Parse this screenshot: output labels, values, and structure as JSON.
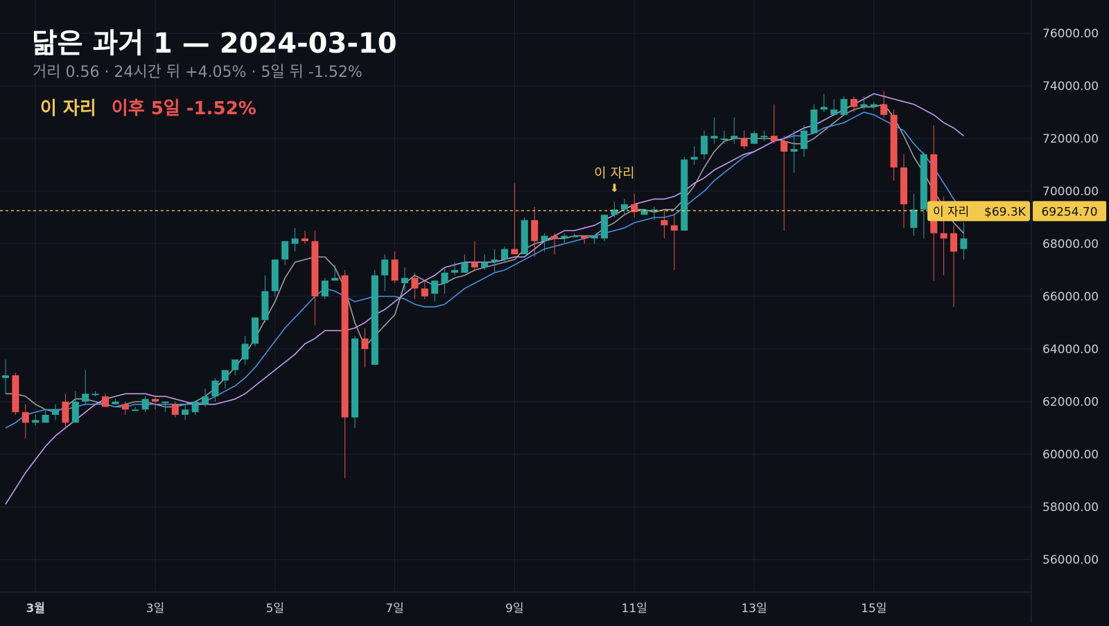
{
  "header": {
    "title": "닮은 과거 1 — 2024-03-10",
    "subtitle": "거리 0.56 · 24시간 뒤 +4.05% · 5일 뒤 -1.52%",
    "marker_label": "이 자리",
    "marker_change": "이후 5일 -1.52%"
  },
  "colors": {
    "background": "#0d1017",
    "grid": "#1d2230",
    "up": "#26a69a",
    "down": "#ef5350",
    "ma_short": "#9e9e9e",
    "ma_mid": "#4a90e2",
    "ma_long": "#c79cf0",
    "marker": "#f2c94c",
    "axis_text": "#c9ccd3"
  },
  "chart_data": {
    "type": "candlestick",
    "title": "닮은 과거 1 — 2024-03-10",
    "interval_hours": 2,
    "start": "2024-03-01 00:00",
    "ylim": [
      55000,
      77000
    ],
    "y_ticks": [
      56000,
      58000,
      60000,
      62000,
      64000,
      66000,
      68000,
      70000,
      72000,
      74000,
      76000
    ],
    "y_tick_labels": [
      "56000.00",
      "58000.00",
      "60000.00",
      "62000.00",
      "64000.00",
      "66000.00",
      "68000.00",
      "70000.00",
      "72000.00",
      "74000.00",
      "76000.00"
    ],
    "x_tick_labels": [
      "3월",
      "3일",
      "5일",
      "7일",
      "9일",
      "11일",
      "13일",
      "15일"
    ],
    "grid": true,
    "candles": [
      [
        62900,
        63600,
        62300,
        63000
      ],
      [
        63000,
        63100,
        61500,
        61600
      ],
      [
        61600,
        61900,
        60600,
        61200
      ],
      [
        61200,
        61500,
        61100,
        61300
      ],
      [
        61200,
        61700,
        61200,
        61500
      ],
      [
        61500,
        61900,
        61300,
        61700
      ],
      [
        62000,
        62300,
        61000,
        61200
      ],
      [
        61200,
        62400,
        61200,
        62000
      ],
      [
        62000,
        63200,
        61900,
        62300
      ],
      [
        62300,
        62400,
        62200,
        62300
      ],
      [
        62200,
        62300,
        61900,
        61800
      ],
      [
        61900,
        62100,
        61900,
        62000
      ],
      [
        61900,
        62000,
        61500,
        61700
      ],
      [
        61700,
        61800,
        61700,
        61700
      ],
      [
        61700,
        62200,
        61600,
        62100
      ],
      [
        62100,
        62200,
        61700,
        62000
      ],
      [
        62000,
        62000,
        61600,
        62000
      ],
      [
        61900,
        62000,
        61400,
        61500
      ],
      [
        61500,
        61900,
        61300,
        61700
      ],
      [
        61600,
        61900,
        61500,
        62000
      ],
      [
        61900,
        62500,
        61800,
        62200
      ],
      [
        62200,
        62900,
        62000,
        62800
      ],
      [
        62800,
        63200,
        62500,
        63200
      ],
      [
        63200,
        63600,
        63000,
        63600
      ],
      [
        63600,
        64500,
        63400,
        64200
      ],
      [
        64200,
        65200,
        64100,
        65200
      ],
      [
        65100,
        66800,
        65000,
        66200
      ],
      [
        66200,
        67400,
        66000,
        67400
      ],
      [
        67400,
        68100,
        67200,
        68100
      ],
      [
        68000,
        68600,
        67700,
        68200
      ],
      [
        68200,
        68500,
        68000,
        68100
      ],
      [
        68100,
        68500,
        64900,
        66000
      ],
      [
        66000,
        66700,
        65900,
        66600
      ],
      [
        66600,
        67200,
        66600,
        66700
      ],
      [
        66800,
        67000,
        59100,
        61400
      ],
      [
        61400,
        64500,
        61000,
        64400
      ],
      [
        64400,
        64800,
        63300,
        64000
      ],
      [
        63400,
        67000,
        63400,
        66800
      ],
      [
        66800,
        67600,
        66200,
        67400
      ],
      [
        67400,
        67700,
        66500,
        66600
      ],
      [
        66500,
        67100,
        66200,
        66700
      ],
      [
        66700,
        66900,
        65900,
        66300
      ],
      [
        66300,
        66600,
        65900,
        66000
      ],
      [
        66100,
        66600,
        65800,
        66600
      ],
      [
        66500,
        67100,
        66100,
        66900
      ],
      [
        66900,
        67300,
        66800,
        67000
      ],
      [
        66900,
        67600,
        66900,
        67300
      ],
      [
        67300,
        68100,
        67000,
        67100
      ],
      [
        67100,
        67600,
        67000,
        67300
      ],
      [
        67300,
        67800,
        66900,
        67400
      ],
      [
        67400,
        67900,
        67300,
        67800
      ],
      [
        67800,
        70300,
        67800,
        67600
      ],
      [
        67600,
        69000,
        67600,
        68900
      ],
      [
        68900,
        69400,
        67500,
        68100
      ],
      [
        68100,
        68400,
        67700,
        68300
      ],
      [
        68300,
        68400,
        67600,
        68200
      ],
      [
        68200,
        68400,
        68000,
        68300
      ],
      [
        68300,
        68400,
        68300,
        68300
      ],
      [
        68300,
        68300,
        68000,
        68200
      ],
      [
        68200,
        68300,
        68000,
        68300
      ],
      [
        68200,
        69100,
        68100,
        69100
      ],
      [
        69100,
        69600,
        69000,
        69300
      ],
      [
        69300,
        69700,
        69100,
        69500
      ],
      [
        69500,
        69900,
        69000,
        69200
      ],
      [
        69100,
        69300,
        69200,
        69300
      ],
      [
        69300,
        69400,
        68900,
        69300
      ],
      [
        68900,
        69300,
        68200,
        68700
      ],
      [
        68700,
        69100,
        67000,
        68500
      ],
      [
        68500,
        71300,
        68500,
        71200
      ],
      [
        71200,
        71700,
        71000,
        71300
      ],
      [
        71400,
        72300,
        71200,
        72100
      ],
      [
        72000,
        72800,
        71800,
        72100
      ],
      [
        72000,
        72300,
        71800,
        72000
      ],
      [
        72000,
        72800,
        71800,
        72100
      ],
      [
        72000,
        72300,
        71600,
        71700
      ],
      [
        71800,
        72300,
        71800,
        72200
      ],
      [
        72100,
        72300,
        71900,
        72100
      ],
      [
        72100,
        73300,
        71800,
        71900
      ],
      [
        71900,
        72100,
        68500,
        71500
      ],
      [
        71500,
        72300,
        70700,
        71600
      ],
      [
        71600,
        72500,
        71300,
        72300
      ],
      [
        72200,
        73300,
        72200,
        73100
      ],
      [
        73100,
        73700,
        73000,
        73200
      ],
      [
        72900,
        73500,
        72900,
        73100
      ],
      [
        72900,
        73600,
        72900,
        73500
      ],
      [
        73500,
        73600,
        73000,
        73200
      ],
      [
        73200,
        73600,
        73100,
        73300
      ],
      [
        73200,
        73400,
        73100,
        73300
      ],
      [
        73300,
        73800,
        72800,
        72900
      ],
      [
        72900,
        73100,
        70400,
        70900
      ],
      [
        70900,
        71400,
        68600,
        69500
      ],
      [
        68600,
        69900,
        68300,
        69300
      ],
      [
        69300,
        71500,
        68200,
        71400
      ],
      [
        71400,
        72500,
        66600,
        68400
      ],
      [
        68400,
        69800,
        66800,
        68200
      ],
      [
        68400,
        68700,
        65600,
        67700
      ],
      [
        67800,
        68800,
        67400,
        68200
      ]
    ],
    "moving_averages": [
      {
        "period": 3,
        "values": [
          62300,
          62300,
          62200,
          61900,
          61700,
          61600,
          61800,
          62100,
          62100,
          62000,
          61900,
          61800,
          61900,
          62000,
          62000,
          61900,
          61800,
          61800,
          61900,
          62000,
          62200,
          62500,
          62900,
          63300,
          63800,
          64400,
          65100,
          65800,
          66700,
          67300,
          67400,
          67500,
          67500,
          67100,
          66300,
          65000,
          64100,
          64500,
          64900,
          65300,
          66500,
          66800,
          66600,
          66400,
          66500,
          66700,
          66800,
          67000,
          67100,
          67200,
          67300,
          67400,
          67800,
          68000,
          68100,
          68200,
          68200,
          68300,
          68300,
          68300,
          68600,
          68800,
          69100,
          69300,
          69300,
          69200,
          69300,
          69300,
          69700,
          70200,
          70900,
          71500,
          71900,
          72000,
          72000,
          72000,
          72000,
          72000,
          71900,
          71800,
          71800,
          72000,
          72300,
          72600,
          72900,
          73100,
          73200,
          73200,
          73300,
          72800,
          72100,
          71300,
          70700,
          70000,
          69400,
          68800,
          68400
        ]
      },
      {
        "period": 10,
        "values": [
          61000,
          61200,
          61500,
          61600,
          61700,
          61700,
          61700,
          61800,
          61900,
          61900,
          61900,
          61800,
          61800,
          61900,
          61900,
          61900,
          61900,
          61900,
          61900,
          61900,
          62000,
          62200,
          62400,
          62600,
          62900,
          63300,
          63800,
          64300,
          64800,
          65200,
          65600,
          66000,
          66300,
          66200,
          66000,
          65800,
          65900,
          66000,
          66000,
          66000,
          65900,
          65700,
          65600,
          65600,
          65700,
          66000,
          66300,
          66500,
          66700,
          66900,
          67000,
          67200,
          67400,
          67600,
          67800,
          67900,
          68000,
          68100,
          68200,
          68300,
          68400,
          68500,
          68600,
          68800,
          68900,
          69000,
          69000,
          69100,
          69400,
          69700,
          70000,
          70400,
          70700,
          71000,
          71300,
          71500,
          71700,
          71900,
          72000,
          72100,
          72100,
          72200,
          72400,
          72500,
          72600,
          72800,
          73000,
          72900,
          72700,
          72500,
          72300,
          71800,
          71400,
          70900,
          70300,
          69700,
          69200
        ]
      },
      {
        "period": 30,
        "values": [
          58100,
          58700,
          59300,
          59800,
          60300,
          60700,
          61000,
          61300,
          61600,
          61900,
          62100,
          62200,
          62300,
          62300,
          62300,
          62200,
          62200,
          62100,
          62000,
          61900,
          61900,
          61900,
          62000,
          62100,
          62300,
          62600,
          62900,
          63200,
          63500,
          63800,
          64200,
          64400,
          64700,
          64700,
          64700,
          64800,
          65000,
          65300,
          65500,
          65800,
          66100,
          66400,
          66600,
          66800,
          67100,
          67200,
          67300,
          67300,
          67300,
          67300,
          67400,
          67500,
          67500,
          67800,
          68100,
          68300,
          68500,
          68500,
          68600,
          68700,
          68900,
          69100,
          69300,
          69500,
          69600,
          69700,
          69700,
          69800,
          70000,
          70300,
          70500,
          70800,
          71000,
          71200,
          71400,
          71500,
          71700,
          71900,
          72000,
          72200,
          72400,
          72500,
          72700,
          72900,
          73100,
          73300,
          73500,
          73700,
          73600,
          73500,
          73400,
          73300,
          73100,
          72900,
          72600,
          72400,
          72100
        ]
      }
    ],
    "marker": {
      "label": "이 자리",
      "index": 61,
      "price": 69254.7,
      "price_label": "69254.70",
      "short_label": "$69.3K"
    }
  }
}
